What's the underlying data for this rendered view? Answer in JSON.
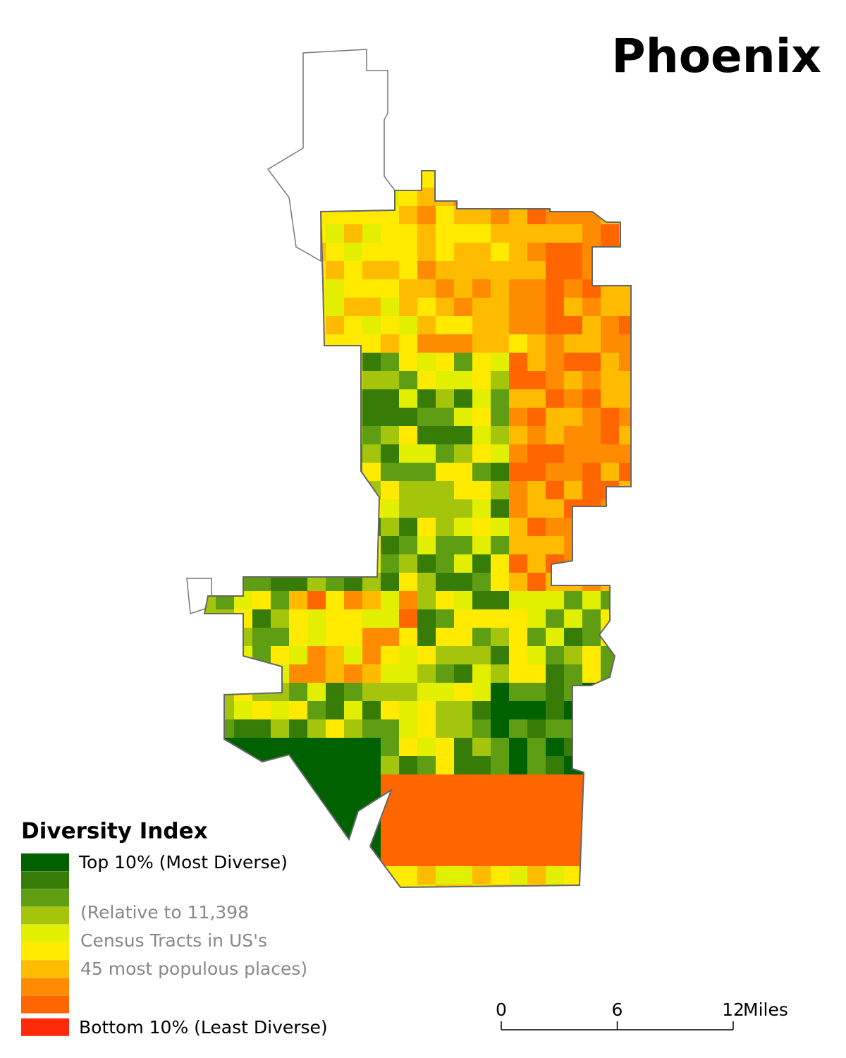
{
  "title": "Phoenix",
  "legend": {
    "title": "Diversity Index",
    "classes": [
      {
        "color": "#006100",
        "label": "Top 10% (Most Diverse)"
      },
      {
        "color": "#367c06"
      },
      {
        "color": "#5f9e12"
      },
      {
        "color": "#a5c40c"
      },
      {
        "color": "#e2ef00"
      },
      {
        "color": "#ffea00"
      },
      {
        "color": "#ffbb00"
      },
      {
        "color": "#ff8c00"
      },
      {
        "color": "#ff6600"
      },
      {
        "color": "#ff2a0a",
        "label": "Bottom 10% (Least Diverse)"
      }
    ],
    "note": [
      "(Relative to 11,398",
      "Census Tracts in US's",
      "45 most populous places)"
    ]
  },
  "scale_bar": {
    "ticks": [
      0,
      6,
      12
    ],
    "unit": "Miles"
  }
}
